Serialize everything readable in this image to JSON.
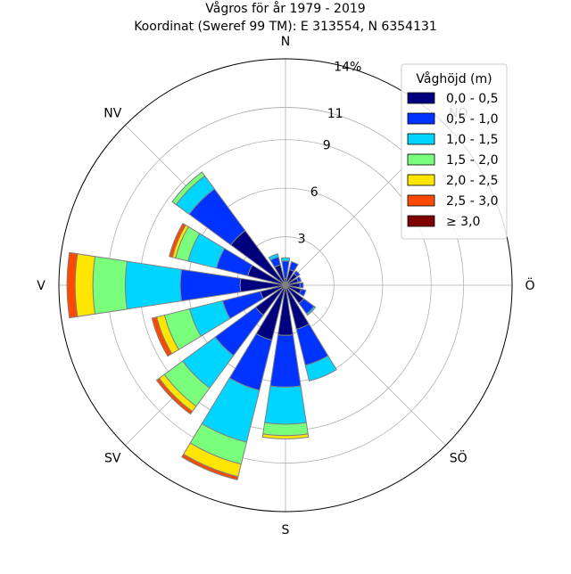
{
  "chart_data": {
    "type": "windrose",
    "title": "Vågros för år 1979 - 2019",
    "subtitle": "Koordinat (Sweref 99 TM): E 313554, N 6354131",
    "direction_labels": {
      "N": "N",
      "NO": "NO",
      "O": "Ö",
      "SO": "SÖ",
      "S": "S",
      "SV": "SV",
      "V": "V",
      "NV": "NV"
    },
    "radial_ticks": [
      "3",
      "6",
      "9",
      "11",
      "14%"
    ],
    "radial_max": 14,
    "legend": {
      "title": "Våghöjd (m)",
      "placement": "top-right",
      "bins": [
        {
          "label": "0,0 - 0,5",
          "color": "#00007f"
        },
        {
          "label": "0,5 - 1,0",
          "color": "#0033ff"
        },
        {
          "label": "1,0 - 1,5",
          "color": "#00d5ff"
        },
        {
          "label": "1,5 - 2,0",
          "color": "#7aff7d"
        },
        {
          "label": "2,0 - 2,5",
          "color": "#ffe500"
        },
        {
          "label": "2,5 - 3,0",
          "color": "#ff4800"
        },
        {
          "label": "≥ 3,0",
          "color": "#7f0000"
        }
      ]
    },
    "sectors": [
      {
        "direction_deg": 0.0,
        "values": [
          0.4,
          1.1,
          0.2,
          0,
          0,
          0,
          0
        ]
      },
      {
        "direction_deg": 22.5,
        "values": [
          1.0,
          0.5,
          0,
          0,
          0,
          0,
          0
        ]
      },
      {
        "direction_deg": 45.0,
        "values": [
          0.9,
          0.2,
          0,
          0,
          0,
          0,
          0
        ]
      },
      {
        "direction_deg": 67.5,
        "values": [
          0.8,
          0.2,
          0,
          0,
          0,
          0,
          0
        ]
      },
      {
        "direction_deg": 90.0,
        "values": [
          0.9,
          0.2,
          0,
          0,
          0,
          0,
          0
        ]
      },
      {
        "direction_deg": 112.5,
        "values": [
          1.0,
          0.3,
          0,
          0,
          0,
          0,
          0
        ]
      },
      {
        "direction_deg": 135.0,
        "values": [
          1.4,
          0.8,
          0.1,
          0,
          0,
          0,
          0
        ]
      },
      {
        "direction_deg": 157.5,
        "values": [
          2.8,
          2.3,
          1.0,
          0,
          0,
          0,
          0
        ]
      },
      {
        "direction_deg": 180.0,
        "values": [
          3.1,
          3.2,
          2.3,
          0.7,
          0.2,
          0,
          0
        ]
      },
      {
        "direction_deg": 202.5,
        "values": [
          3.5,
          3.2,
          3.3,
          1.4,
          0.8,
          0.2,
          0
        ]
      },
      {
        "direction_deg": 225.0,
        "values": [
          2.3,
          3.1,
          2.5,
          1.4,
          0.4,
          0.2,
          0
        ]
      },
      {
        "direction_deg": 247.5,
        "values": [
          1.6,
          2.4,
          2.1,
          1.6,
          0.5,
          0.3,
          0
        ]
      },
      {
        "direction_deg": 270.0,
        "values": [
          2.8,
          3.7,
          3.4,
          2.0,
          1.1,
          0.5,
          0
        ]
      },
      {
        "direction_deg": 292.5,
        "values": [
          2.4,
          2.0,
          1.8,
          0.8,
          0.2,
          0.2,
          0
        ]
      },
      {
        "direction_deg": 315.0,
        "values": [
          4.2,
          3.2,
          1.0,
          0.3,
          0,
          0,
          0
        ]
      },
      {
        "direction_deg": 337.5,
        "values": [
          1.3,
          0.5,
          0.2,
          0,
          0,
          0,
          0
        ]
      }
    ]
  }
}
